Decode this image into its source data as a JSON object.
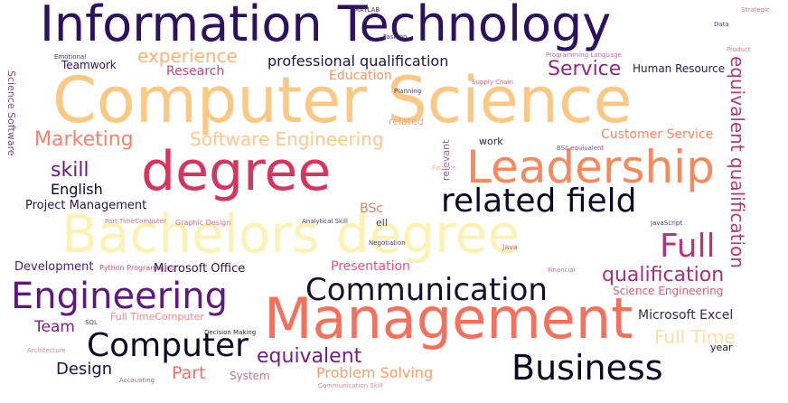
{
  "word_cloud": {
    "words": [
      {
        "text": "Information Technology",
        "color": "#2d1160"
      },
      {
        "text": "Computer Science",
        "color": "#fbc983"
      },
      {
        "text": "degree",
        "color": "#d8345e"
      },
      {
        "text": "Leadership",
        "color": "#f7895f"
      },
      {
        "text": "related field",
        "color": "#0c0826"
      },
      {
        "text": "Bachelors degree",
        "color": "#fcf2b4"
      },
      {
        "text": "Full",
        "color": "#b5367a"
      },
      {
        "text": "Engineering",
        "color": "#5f187f"
      },
      {
        "text": "Communication",
        "color": "#14102e"
      },
      {
        "text": "Management",
        "color": "#f7705c"
      },
      {
        "text": "Computer",
        "color": "#0b0924"
      },
      {
        "text": "Business",
        "color": "#0a0822"
      },
      {
        "text": "qualification",
        "color": "#a3307e"
      },
      {
        "text": "equivalent qualification",
        "color": "#b73779"
      },
      {
        "text": "experience",
        "color": "#fcb47b"
      },
      {
        "text": "professional qualification",
        "color": "#1f1444"
      },
      {
        "text": "Service",
        "color": "#8c2981"
      },
      {
        "text": "Marketing",
        "color": "#f7816b"
      },
      {
        "text": "Software Engineering",
        "color": "#fdc78d"
      },
      {
        "text": "skill",
        "color": "#6c1c81"
      },
      {
        "text": "English",
        "color": "#0d0a29"
      },
      {
        "text": "Project Management",
        "color": "#2a1255"
      },
      {
        "text": "Customer Service",
        "color": "#fa8763"
      },
      {
        "text": "Microsoft Office",
        "color": "#2b1157"
      },
      {
        "text": "Presentation",
        "color": "#e4527f"
      },
      {
        "text": "Team",
        "color": "#7a2282"
      },
      {
        "text": "Full Time",
        "color": "#fde0a3"
      },
      {
        "text": "equivalent",
        "color": "#721f81"
      },
      {
        "text": "Design",
        "color": "#1d1147"
      },
      {
        "text": "Part",
        "color": "#ef6f6b"
      },
      {
        "text": "Problem Solving",
        "color": "#f99e6b"
      },
      {
        "text": "Microsoft Excel",
        "color": "#342a52"
      },
      {
        "text": "Science Engineering",
        "color": "#e05c6e"
      },
      {
        "text": "Human Resource",
        "color": "#2b1a4f"
      },
      {
        "text": "Research",
        "color": "#c4457a"
      },
      {
        "text": "Education",
        "color": "#f4946a"
      },
      {
        "text": "Teamwork",
        "color": "#3b0f70"
      },
      {
        "text": "BSc",
        "color": "#f07b6a"
      },
      {
        "text": "Development",
        "color": "#4a1f7a"
      },
      {
        "text": "Science Software",
        "color": "#8a3f8e"
      },
      {
        "text": "Full TimeComputer",
        "color": "#f5888a"
      },
      {
        "text": "work",
        "color": "#2d2550"
      },
      {
        "text": "related",
        "color": "#eea87f"
      },
      {
        "text": "year",
        "color": "#221b3e"
      },
      {
        "text": "relevant",
        "color": "#9b5fa0"
      },
      {
        "text": "ell",
        "color": "#503b7a"
      },
      {
        "text": "Graphic Design",
        "color": "#d2698a"
      },
      {
        "text": "Python Programming",
        "color": "#b55289"
      },
      {
        "text": "Part TimeComputer",
        "color": "#d26a8f"
      },
      {
        "text": "Decision Making",
        "color": "#2c2640"
      },
      {
        "text": "Supply Chain",
        "color": "#cd6a80"
      },
      {
        "text": "Planning",
        "color": "#4b3b73"
      },
      {
        "text": "Fashion",
        "color": "#3d2f5f"
      },
      {
        "text": "Java",
        "color": "#c6637c"
      },
      {
        "text": "Programming Language",
        "color": "#c06fa5"
      },
      {
        "text": "Analytical Skill",
        "color": "#4a3c6e"
      },
      {
        "text": "JavaScript",
        "color": "#4a3f70"
      },
      {
        "text": "BSc equivalent",
        "color": "#a74a85"
      },
      {
        "text": "Financial",
        "color": "#c5728e"
      },
      {
        "text": "Negotiation",
        "color": "#4d4268"
      },
      {
        "text": "Communication Skill",
        "color": "#c99290"
      },
      {
        "text": "Accounting",
        "color": "#a05f8c"
      },
      {
        "text": "System",
        "color": "#c07789"
      },
      {
        "text": "SQL",
        "color": "#4f3f74"
      },
      {
        "text": "Architecture",
        "color": "#c98aa3"
      },
      {
        "text": "Data",
        "color": "#5a3f80"
      },
      {
        "text": "Product",
        "color": "#c98a8a"
      },
      {
        "text": "MATLAB",
        "color": "#3f2e63"
      },
      {
        "text": "Emotional",
        "color": "#4a3270"
      },
      {
        "text": "Finance",
        "color": "#e8b2a6"
      },
      {
        "text": "Strategic",
        "color": "#b77aa5"
      }
    ]
  }
}
